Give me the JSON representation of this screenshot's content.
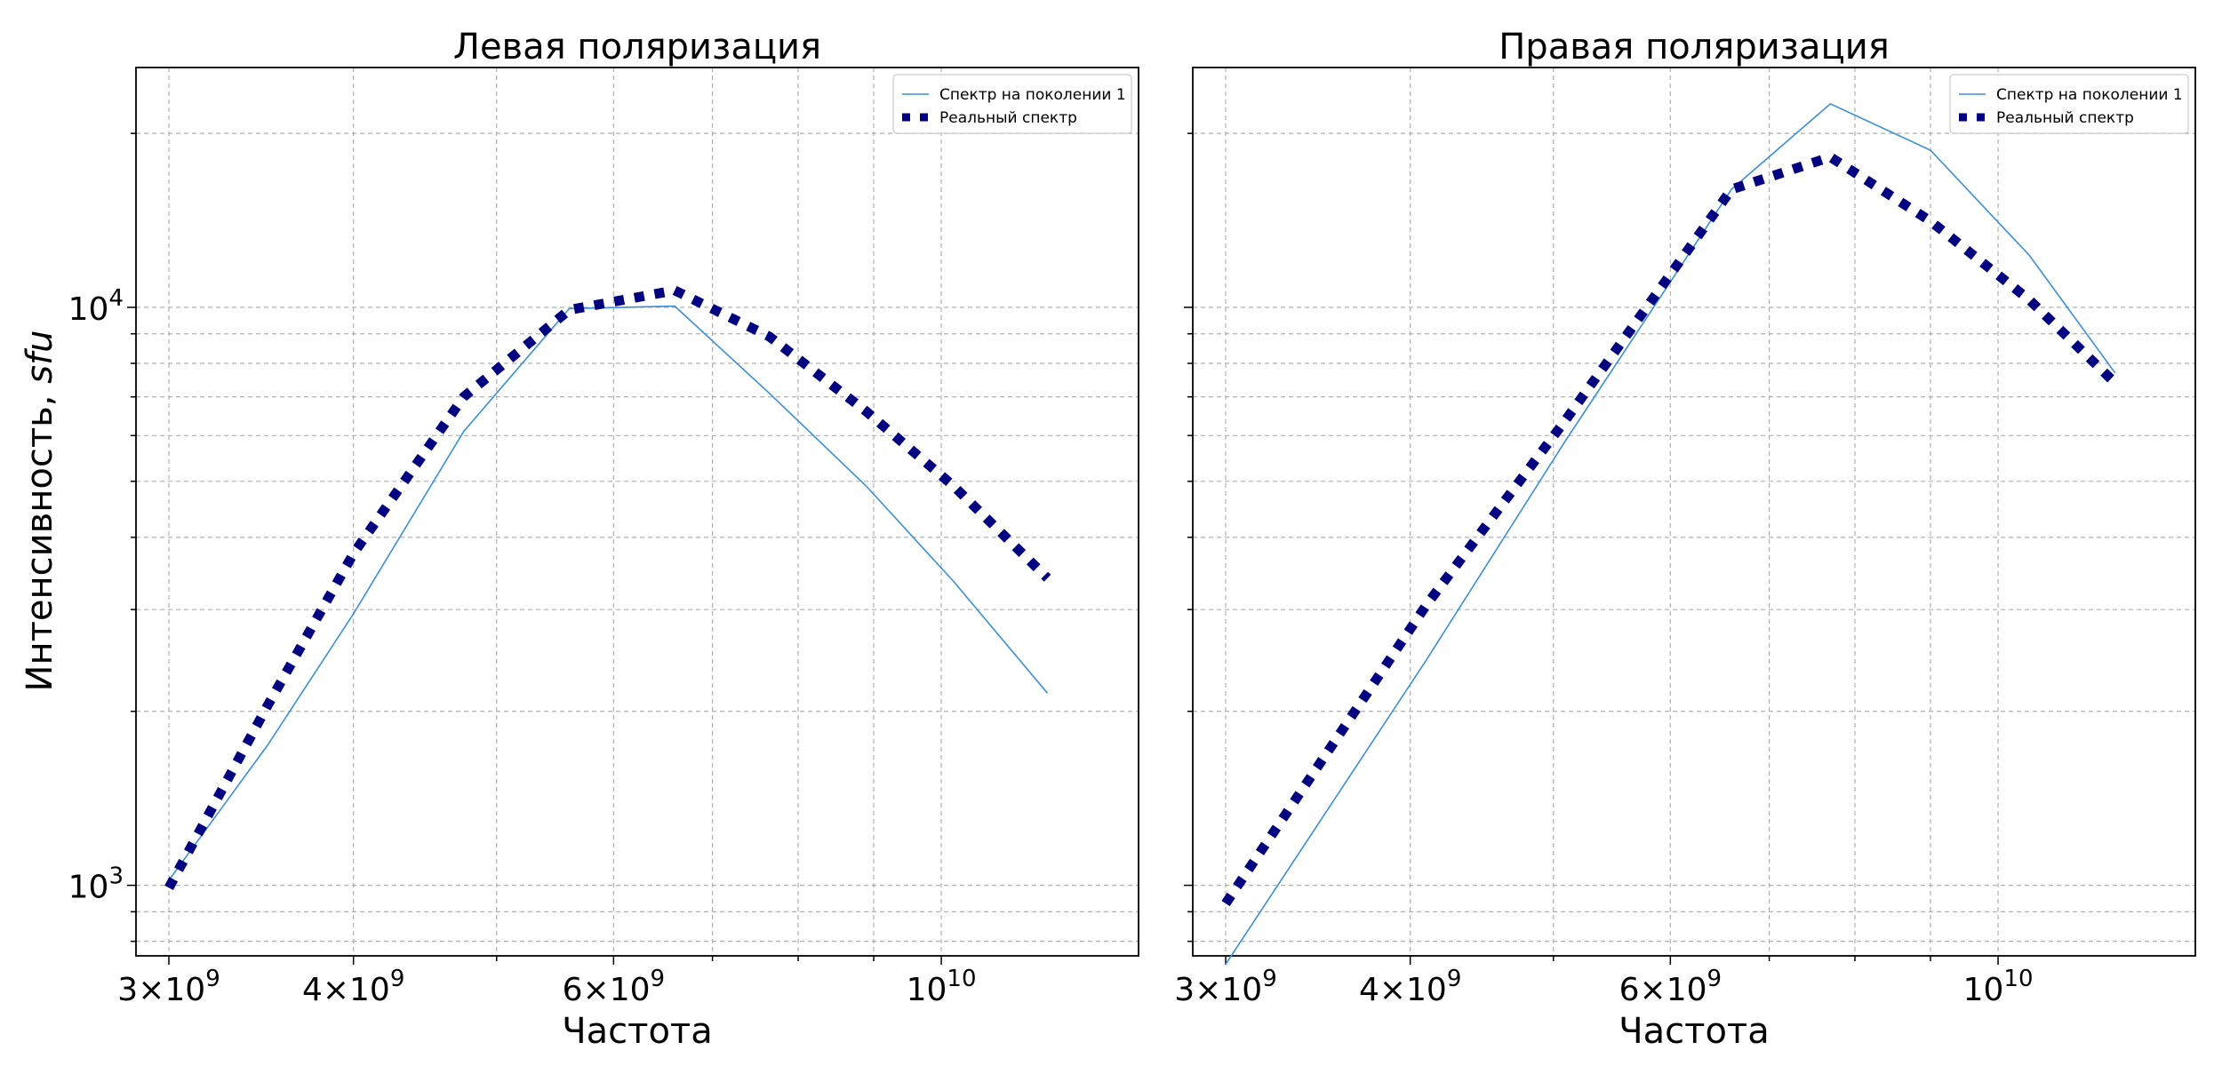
{
  "figure": {
    "ylabel_main": "Интенсивность, ",
    "ylabel_unit": "sfu"
  },
  "colors": {
    "model": "#3a8fd6",
    "real": "#000080",
    "grid": "#b0b0b0"
  },
  "chart_data": [
    {
      "type": "line",
      "title": "Левая поляризация",
      "xlabel": "Частота",
      "x_scale": "log",
      "y_scale": "log",
      "xlim": [
        2850000000.0,
        13600000000.0
      ],
      "ylim": [
        755,
        26000
      ],
      "xticks": [
        {
          "value": 3000000000.0,
          "mant": "3",
          "exp": "9"
        },
        {
          "value": 4000000000.0,
          "mant": "4",
          "exp": "9"
        },
        {
          "value": 6000000000.0,
          "mant": "6",
          "exp": "9"
        },
        {
          "value": 10000000000.0,
          "mant": "",
          "exp": "10"
        }
      ],
      "yticks": [
        {
          "value": 1000,
          "exp": "3"
        },
        {
          "value": 10000,
          "exp": "4"
        }
      ],
      "grid": true,
      "legend_position": "top-right",
      "series": [
        {
          "name": "Спектр на поколении 1",
          "style": "solid",
          "x": [
            3000000000.0,
            3500000000.0,
            4000000000.0,
            4750000000.0,
            5600000000.0,
            6600000000.0,
            7650000000.0,
            8900000000.0,
            10200000000.0,
            11800000000.0
          ],
          "y": [
            1020,
            1750,
            2950,
            6100,
            9950,
            10050,
            7100,
            4900,
            3350,
            2150
          ]
        },
        {
          "name": "Реальный спектр",
          "style": "dotted",
          "x": [
            3000000000.0,
            3500000000.0,
            4000000000.0,
            4750000000.0,
            5600000000.0,
            6600000000.0,
            7650000000.0,
            8900000000.0,
            10200000000.0,
            11800000000.0
          ],
          "y": [
            990,
            2050,
            3750,
            7000,
            9900,
            10700,
            8900,
            6600,
            4900,
            3400
          ]
        }
      ]
    },
    {
      "type": "line",
      "title": "Правая поляризация",
      "xlabel": "Частота",
      "x_scale": "log",
      "y_scale": "log",
      "xlim": [
        2850000000.0,
        13600000000.0
      ],
      "ylim": [
        755,
        26000
      ],
      "xticks": [
        {
          "value": 3000000000.0,
          "mant": "3",
          "exp": "9"
        },
        {
          "value": 4000000000.0,
          "mant": "4",
          "exp": "9"
        },
        {
          "value": 6000000000.0,
          "mant": "6",
          "exp": "9"
        },
        {
          "value": 10000000000.0,
          "mant": "",
          "exp": "10"
        }
      ],
      "yticks": [
        {
          "value": 1000,
          "exp": "3"
        },
        {
          "value": 10000,
          "exp": "4"
        }
      ],
      "grid": true,
      "legend_position": "top-right",
      "series": [
        {
          "name": "Спектр на поколении 1",
          "style": "solid",
          "x": [
            3000000000.0,
            4100000000.0,
            5100000000.0,
            6600000000.0,
            7700000000.0,
            9000000000.0,
            10500000000.0,
            12000000000.0
          ],
          "y": [
            730,
            2450,
            5900,
            16000,
            22500,
            18700,
            12300,
            7700
          ]
        },
        {
          "name": "Реальный спектр",
          "style": "dotted",
          "x": [
            3000000000.0,
            4100000000.0,
            5100000000.0,
            6600000000.0,
            7700000000.0,
            9000000000.0,
            10500000000.0,
            12000000000.0
          ],
          "y": [
            930,
            3050,
            6400,
            16000,
            18200,
            14100,
            10300,
            7400
          ]
        }
      ]
    }
  ]
}
